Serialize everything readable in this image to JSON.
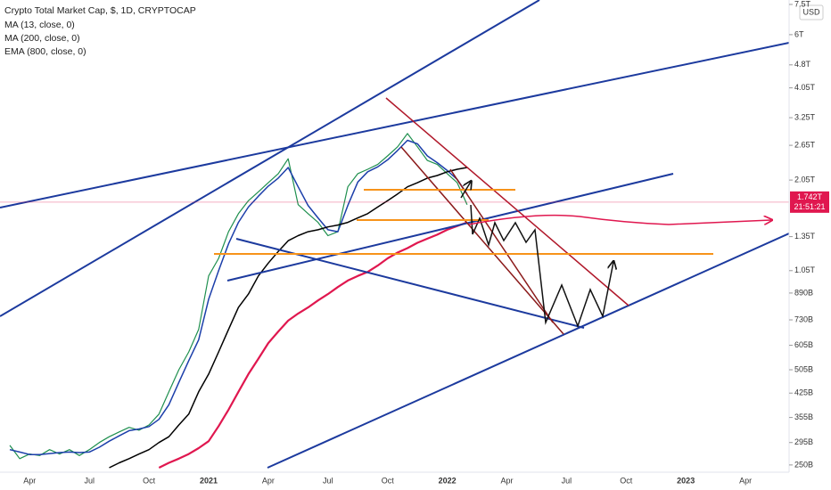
{
  "chart_data": {
    "type": "line",
    "title": "Crypto Total Market Cap, $, 1D, CRYPTOCAP",
    "currency": "USD",
    "log_scale": true,
    "categories": [
      null,
      null,
      "Apr",
      null,
      null,
      null,
      null,
      null,
      "Jul",
      null,
      null,
      null,
      null,
      null,
      "Oct",
      null,
      null,
      null,
      null,
      null,
      "2021",
      null,
      null,
      null,
      null,
      null,
      "Apr",
      null,
      null,
      null,
      null,
      null,
      "Jul",
      null,
      null,
      null,
      null,
      null,
      "Oct",
      null,
      null,
      null,
      null,
      null,
      "2022",
      null,
      null,
      null,
      null,
      null,
      "Apr",
      null,
      null,
      null,
      null,
      null,
      "Jul",
      null,
      null,
      null,
      null,
      null,
      "Oct",
      null,
      null,
      null,
      null,
      null,
      "2023",
      null,
      null,
      null,
      null,
      null,
      "Apr",
      null,
      null,
      null,
      null
    ],
    "series": [
      {
        "name": "Crypto Total Market Cap, $, 1D, CRYPTOCAP",
        "color": "#1e8f4e",
        "values": [
          0.289,
          0.262,
          0.271,
          0.268,
          0.28,
          0.271,
          0.28,
          0.268,
          0.28,
          0.295,
          0.308,
          0.319,
          0.33,
          0.323,
          0.336,
          0.364,
          0.429,
          0.505,
          0.576,
          0.68,
          1.01,
          1.15,
          1.4,
          1.6,
          1.76,
          1.88,
          2.01,
          2.15,
          2.4,
          1.71,
          1.6,
          1.5,
          1.36,
          1.4,
          1.95,
          2.15,
          2.22,
          2.3,
          2.45,
          2.62,
          2.89,
          2.62,
          2.37,
          2.3,
          2.15,
          2.01,
          1.71,
          null,
          null,
          null,
          null,
          null,
          null,
          null,
          null,
          null,
          null,
          null,
          null,
          null,
          null,
          null,
          null,
          null,
          null,
          null,
          null,
          null,
          null,
          null,
          null,
          null,
          null,
          null,
          null,
          null,
          null,
          null,
          null
        ]
      },
      {
        "name": "MA (13, close, 0)",
        "color": "#1c3faa",
        "values": [
          0.28,
          0.275,
          0.27,
          0.27,
          0.272,
          0.274,
          0.275,
          0.274,
          0.275,
          0.285,
          0.298,
          0.31,
          0.322,
          0.326,
          0.332,
          0.35,
          0.39,
          0.46,
          0.54,
          0.63,
          0.85,
          1.05,
          1.28,
          1.5,
          1.68,
          1.82,
          1.96,
          2.08,
          2.25,
          1.95,
          1.7,
          1.55,
          1.42,
          1.4,
          1.7,
          2.02,
          2.18,
          2.26,
          2.38,
          2.55,
          2.75,
          2.68,
          2.45,
          2.33,
          2.2,
          2.06,
          1.85,
          null,
          null,
          null,
          null,
          null,
          null,
          null,
          null,
          null,
          null,
          null,
          null,
          null,
          null,
          null,
          null,
          null,
          null,
          null,
          null,
          null,
          null,
          null,
          null,
          null,
          null,
          null,
          null,
          null,
          null,
          null,
          null
        ]
      },
      {
        "name": "MA (200, close, 0)",
        "color": "#000000",
        "values": [
          null,
          null,
          null,
          null,
          null,
          null,
          null,
          null,
          null,
          null,
          0.245,
          0.254,
          0.262,
          0.271,
          0.28,
          0.295,
          0.308,
          0.336,
          0.364,
          0.429,
          0.489,
          0.576,
          0.68,
          0.8,
          0.883,
          1.01,
          1.11,
          1.21,
          1.31,
          1.36,
          1.4,
          1.42,
          1.45,
          1.47,
          1.5,
          1.55,
          1.6,
          1.68,
          1.76,
          1.85,
          1.95,
          2.01,
          2.08,
          2.12,
          2.18,
          2.22,
          2.25,
          null,
          null,
          null,
          null,
          null,
          null,
          null,
          null,
          null,
          null,
          null,
          null,
          null,
          null,
          null,
          null,
          null,
          null,
          null,
          null,
          null,
          null,
          null,
          null,
          null,
          null,
          null,
          null,
          null,
          null,
          null,
          null
        ]
      },
      {
        "name": "EMA (800, close, 0)",
        "color": "#e0174f",
        "values": [
          null,
          null,
          null,
          null,
          null,
          null,
          null,
          null,
          null,
          null,
          null,
          null,
          null,
          null,
          null,
          0.245,
          0.254,
          0.262,
          0.271,
          0.283,
          0.298,
          0.333,
          0.376,
          0.429,
          0.489,
          0.548,
          0.615,
          0.67,
          0.726,
          0.765,
          0.8,
          0.843,
          0.883,
          0.93,
          0.976,
          1.01,
          1.04,
          1.09,
          1.15,
          1.2,
          1.24,
          1.29,
          1.33,
          1.37,
          1.42,
          1.46,
          1.5,
          null,
          null,
          null,
          null,
          null,
          null,
          null,
          null,
          null,
          null,
          null,
          null,
          null,
          null,
          null,
          null,
          null,
          null,
          null,
          null,
          null,
          null,
          null,
          null,
          null,
          null,
          null,
          null,
          null,
          null,
          null,
          null
        ]
      }
    ],
    "last_price": {
      "value": 1.742,
      "label": "1.742T"
    },
    "countdown": "21:51:21",
    "ylim": [
      0.237,
      7.75
    ],
    "yticks": [
      {
        "value": 7.5,
        "label": "7.5T"
      },
      {
        "value": 6,
        "label": "6T"
      },
      {
        "value": 4.8,
        "label": "4.8T"
      },
      {
        "value": 4.05,
        "label": "4.05T"
      },
      {
        "value": 3.25,
        "label": "3.25T"
      },
      {
        "value": 2.65,
        "label": "2.65T"
      },
      {
        "value": 2.05,
        "label": "2.05T"
      },
      {
        "value": 1.35,
        "label": "1.35T"
      },
      {
        "value": 1.05,
        "label": "1.05T"
      },
      {
        "value": 0.89,
        "label": "890B"
      },
      {
        "value": 0.73,
        "label": "730B"
      },
      {
        "value": 0.605,
        "label": "605B"
      },
      {
        "value": 0.505,
        "label": "505B"
      },
      {
        "value": 0.425,
        "label": "425B"
      },
      {
        "value": 0.355,
        "label": "355B"
      },
      {
        "value": 0.295,
        "label": "295B"
      },
      {
        "value": 0.25,
        "label": "250B"
      }
    ]
  }
}
